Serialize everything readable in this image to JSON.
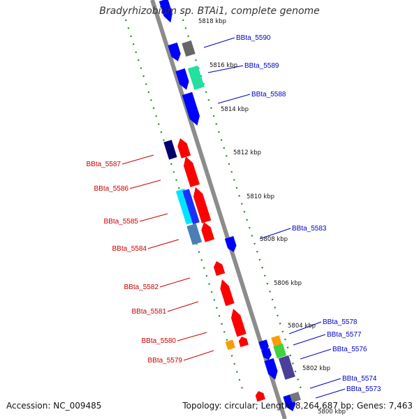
{
  "title": "Bradyrhizobium sp. BTAi1, complete genome",
  "accession_text": "Accession: NC_009485",
  "info_text": "Topology: circular; Length: 8,264,687 bp; Genes: 7,463",
  "colors": {
    "backbone": "#8c8c8c",
    "forward_label": "#0000c8",
    "reverse_label": "#c80000",
    "tick_dots": "#1a8a1a"
  },
  "kbp_labels": [
    "5818 kbp",
    "5816 kbp",
    "5814 kbp",
    "5812 kbp",
    "5810 kbp",
    "5808 kbp",
    "5806 kbp",
    "5804 kbp",
    "5802 kbp",
    "5800 kbp"
  ],
  "forward_genes": [
    {
      "name": "BBta_5590",
      "color": "#0000ff"
    },
    {
      "name": "BBta_5589",
      "color": "#0000ff"
    },
    {
      "name": "BBta_5588",
      "color": "#0000ff"
    },
    {
      "name": "BBta_5583",
      "color": "#0000ff"
    },
    {
      "name": "BBta_5578",
      "color": "#0000ff"
    },
    {
      "name": "BBta_5577",
      "color": "#0000ff"
    },
    {
      "name": "BBta_5576",
      "color": "#0000ff"
    },
    {
      "name": "BBta_5574",
      "color": "#0000ff"
    },
    {
      "name": "BBta_5573",
      "color": "#0000ff"
    }
  ],
  "reverse_genes": [
    {
      "name": "BBta_5587",
      "color": "#ff0000"
    },
    {
      "name": "BBta_5586",
      "color": "#ff0000"
    },
    {
      "name": "BBta_5585",
      "color": "#ff0000"
    },
    {
      "name": "BBta_5584",
      "color": "#ff0000"
    },
    {
      "name": "BBta_5582",
      "color": "#ff0000"
    },
    {
      "name": "BBta_5581",
      "color": "#ff0000"
    },
    {
      "name": "BBta_5580",
      "color": "#ff0000"
    },
    {
      "name": "BBta_5579",
      "color": "#ff0000"
    }
  ]
}
